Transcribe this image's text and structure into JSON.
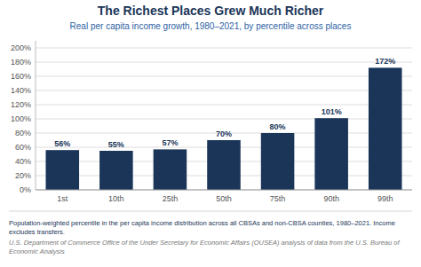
{
  "chart_data": {
    "type": "bar",
    "title": "The Richest Places Grew Much Richer",
    "subtitle": "Real per capita income growth, 1980–2021, by percentile across places",
    "categories": [
      "1st",
      "10th",
      "25th",
      "50th",
      "75th",
      "90th",
      "99th"
    ],
    "values": [
      56,
      55,
      57,
      70,
      80,
      101,
      172
    ],
    "value_labels": [
      "56%",
      "55%",
      "57%",
      "70%",
      "80%",
      "101%",
      "172%"
    ],
    "data_labels": true,
    "color": "#1a3558",
    "ylim": [
      0,
      210
    ],
    "yticks": [
      {
        "value": 0,
        "label": "0%"
      },
      {
        "value": 20,
        "label": "20%"
      },
      {
        "value": 40,
        "label": "40%"
      },
      {
        "value": 60,
        "label": "60%"
      },
      {
        "value": 80,
        "label": "80%"
      },
      {
        "value": 100,
        "label": "100%"
      },
      {
        "value": 120,
        "label": "120%"
      },
      {
        "value": 140,
        "label": "140%"
      },
      {
        "value": 160,
        "label": "160%"
      },
      {
        "value": 180,
        "label": "180%"
      },
      {
        "value": 200,
        "label": "200%"
      }
    ],
    "grid": true,
    "annotations": [
      "Population-weighted percentile in the per capita income distribution across all CBSAs and non-CBSA counties, 1980–2021.",
      "Income excludes transfers.",
      "U.S. Department of Commerce Office of the Under Secretary for Economic Affairs (OUSEA) analysis of data from the",
      "U.S. Bureau of Economic Analysis"
    ]
  }
}
